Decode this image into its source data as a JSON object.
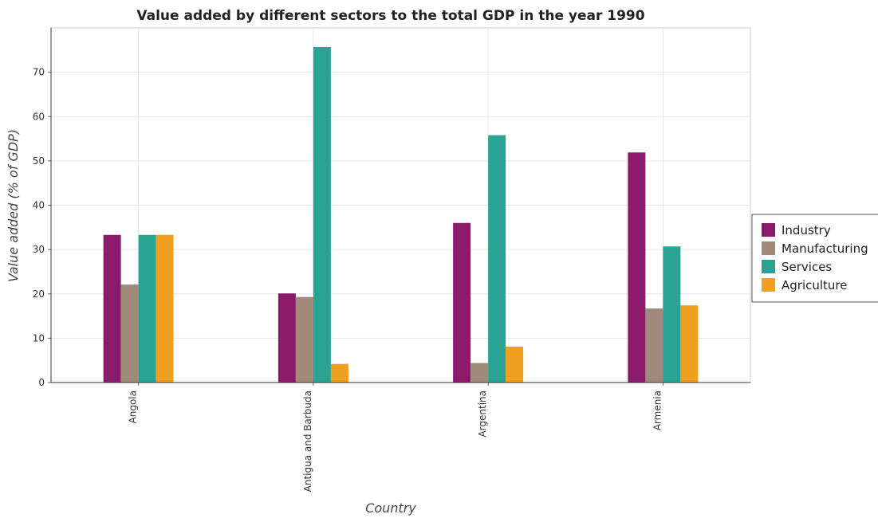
{
  "chart_data": {
    "type": "bar",
    "title": "Value added by different sectors to the total GDP in the year 1990",
    "xlabel": "Country",
    "ylabel": "Value added (% of GDP)",
    "categories": [
      "Angola",
      "Antigua and Barbuda",
      "Argentina",
      "Armenia"
    ],
    "series": [
      {
        "name": "Industry",
        "color": "#8b1a6b",
        "values": [
          33.3,
          20.1,
          36.0,
          51.9
        ]
      },
      {
        "name": "Manufacturing",
        "color": "#a08a7a",
        "values": [
          22.1,
          19.3,
          4.4,
          16.7
        ]
      },
      {
        "name": "Services",
        "color": "#2aa394",
        "values": [
          33.3,
          75.7,
          55.8,
          30.7
        ]
      },
      {
        "name": "Agriculture",
        "color": "#f0a020",
        "values": [
          33.3,
          4.2,
          8.1,
          17.4
        ]
      }
    ],
    "ylim": [
      0,
      80
    ],
    "yticks": [
      0,
      10,
      20,
      30,
      40,
      50,
      60,
      70
    ],
    "grid": true,
    "legend_position": "right"
  }
}
